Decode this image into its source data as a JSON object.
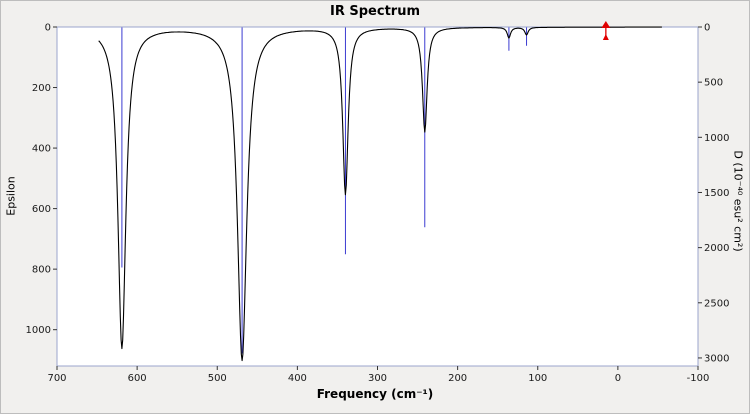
{
  "window": {
    "background": "#f1f0ee",
    "border": "#bdbdbd"
  },
  "chart": {
    "title": "IR Spectrum",
    "x_axis_label": "Frequency (cm⁻¹)",
    "y_axis_left_label": "Epsilon",
    "y_axis_right_label": "D (10⁻⁴⁰ esu² cm²)"
  },
  "chart_data": {
    "type": "line",
    "title": "IR Spectrum",
    "xlabel": "Frequency (cm⁻¹)",
    "ylabel_left": "Epsilon",
    "ylabel_right": "D (10⁻⁴⁰ esu² cm²)",
    "grid": false,
    "legend": false,
    "x_axis": {
      "min": 700,
      "max": -100,
      "reversed": true,
      "ticks": [
        700,
        600,
        500,
        400,
        300,
        200,
        100,
        0,
        -100
      ]
    },
    "y_axis_left": {
      "label": "Epsilon",
      "min": 0,
      "max": 1120,
      "inverted": true,
      "ticks": [
        0,
        200,
        400,
        600,
        800,
        1000
      ]
    },
    "y_axis_right": {
      "label": "D (10⁻⁴⁰ esu² cm²)",
      "min": 0,
      "max": 3073,
      "inverted": true,
      "ticks": [
        0,
        500,
        1000,
        1500,
        2000,
        2500,
        3000
      ]
    },
    "plot_background": "#ffffff",
    "plot_border_color": "#9ba5cc",
    "axis_tick_color": "#333333",
    "curve_color": "#000000",
    "stick_color": "#3b3bd1",
    "marker_color": "#e00000",
    "curve_range": {
      "start": 648,
      "end": -55,
      "step": 1
    },
    "peaks": [
      {
        "frequency": 619,
        "epsilon": 1060,
        "D": 2180,
        "hwhm": 6
      },
      {
        "frequency": 469,
        "epsilon": 1100,
        "D": 2960,
        "hwhm": 7
      },
      {
        "frequency": 340,
        "epsilon": 550,
        "D": 2060,
        "hwhm": 4
      },
      {
        "frequency": 241,
        "epsilon": 345,
        "D": 1815,
        "hwhm": 3.5
      },
      {
        "frequency": 136,
        "epsilon": 35,
        "D": 215,
        "hwhm": 2.5
      },
      {
        "frequency": 114,
        "epsilon": 25,
        "D": 170,
        "hwhm": 2.5
      }
    ],
    "marker": {
      "frequency": 15
    }
  }
}
